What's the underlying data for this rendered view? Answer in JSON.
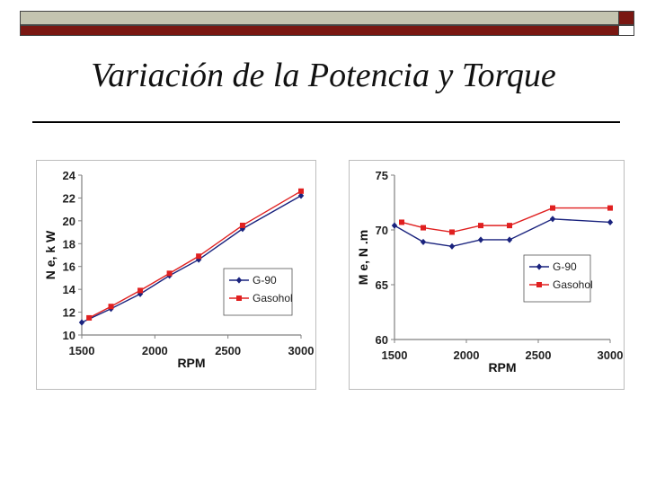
{
  "slide": {
    "title": "Variación de la Potencia y Torque"
  },
  "colors": {
    "series_g90": "#1a237e",
    "series_gasohol": "#e02020",
    "bar_light": "#c4c4b0",
    "bar_dark": "#7a1712"
  },
  "chart_data": [
    {
      "type": "line",
      "xlabel": "RPM",
      "ylabel": "N e, k W",
      "xlim": [
        1500,
        3000
      ],
      "ylim": [
        10,
        24
      ],
      "xticks": [
        1500,
        2000,
        2500,
        3000
      ],
      "yticks": [
        10,
        12,
        14,
        16,
        18,
        20,
        22,
        24
      ],
      "legend_position": "right-middle",
      "series": [
        {
          "name": "G-90",
          "marker": "diamond",
          "x": [
            1500,
            1700,
            1900,
            2100,
            2300,
            2600,
            3000
          ],
          "y": [
            11.1,
            12.3,
            13.6,
            15.2,
            16.6,
            19.3,
            22.2
          ]
        },
        {
          "name": "Gasohol",
          "marker": "square",
          "x": [
            1550,
            1700,
            1900,
            2100,
            2300,
            2600,
            3000
          ],
          "y": [
            11.5,
            12.5,
            13.9,
            15.4,
            16.9,
            19.6,
            22.6
          ]
        }
      ]
    },
    {
      "type": "line",
      "xlabel": "RPM",
      "ylabel": "M e, N .m",
      "xlim": [
        1500,
        3000
      ],
      "ylim": [
        60,
        75
      ],
      "xticks": [
        1500,
        2000,
        2500,
        3000
      ],
      "yticks": [
        60,
        65,
        70,
        75
      ],
      "legend_position": "right-middle",
      "series": [
        {
          "name": "G-90",
          "marker": "diamond",
          "x": [
            1500,
            1700,
            1900,
            2100,
            2300,
            2600,
            3000
          ],
          "y": [
            70.4,
            68.9,
            68.5,
            69.1,
            69.1,
            71.0,
            70.7
          ]
        },
        {
          "name": "Gasohol",
          "marker": "square",
          "x": [
            1550,
            1700,
            1900,
            2100,
            2300,
            2600,
            3000
          ],
          "y": [
            70.7,
            70.2,
            69.8,
            70.4,
            70.4,
            72.0,
            72.0
          ]
        }
      ]
    }
  ]
}
